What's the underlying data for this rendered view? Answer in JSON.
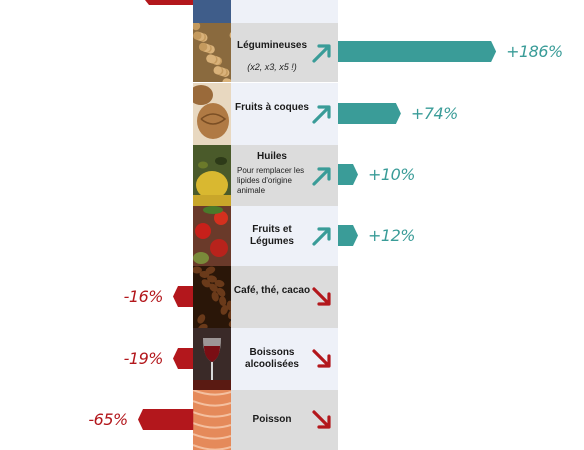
{
  "chart_data": {
    "type": "bar",
    "orientation": "horizontal-diverging",
    "categories": [
      {
        "label": "Légumineuses",
        "note": "(x2, x3, x5 !)",
        "value": 186,
        "value_label": "+186%",
        "direction": "up",
        "photo": "chickpeas"
      },
      {
        "label": "Fruits à coques",
        "value": 74,
        "value_label": "+74%",
        "direction": "up",
        "photo": "walnuts"
      },
      {
        "label": "Huiles",
        "sub": "Pour remplacer les lipides d'origine animale",
        "value": 10,
        "value_label": "+10%",
        "direction": "up",
        "photo": "olive-oil"
      },
      {
        "label": "Fruits et Légumes",
        "value": 12,
        "value_label": "+12%",
        "direction": "up",
        "photo": "vegetables"
      },
      {
        "label": "Café, thé, cacao",
        "value": -16,
        "value_label": "-16%",
        "direction": "down",
        "photo": "coffee"
      },
      {
        "label": "Boissons alcoolisées",
        "value": -19,
        "value_label": "-19%",
        "direction": "down",
        "photo": "wine"
      },
      {
        "label": "Poisson",
        "value": -65,
        "value_label": "-65%",
        "direction": "down",
        "photo": "salmon"
      }
    ],
    "colors": {
      "positive": "#3a9c98",
      "negative": "#b3171c",
      "arrow_up": "#3a9c98",
      "arrow_down": "#b3171c"
    }
  }
}
